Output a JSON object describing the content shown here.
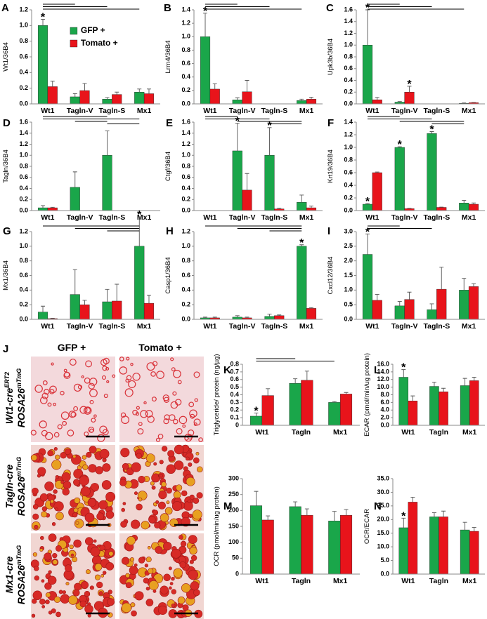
{
  "chart_data": [
    {
      "type": "bar",
      "panel": "A",
      "ylabel": "Wt1/36B4",
      "categories": [
        "Wt1",
        "Tagln-V",
        "Tagln-S",
        "Mx1"
      ],
      "series": [
        {
          "name": "GFP +",
          "color": "#1aa64a",
          "values": [
            1.0,
            0.09,
            0.06,
            0.15
          ],
          "errors": [
            0.08,
            0.04,
            0.02,
            0.04
          ]
        },
        {
          "name": "Tomato +",
          "color": "#e8141b",
          "values": [
            0.22,
            0.17,
            0.12,
            0.13
          ],
          "errors": [
            0.07,
            0.09,
            0.03,
            0.06
          ]
        }
      ],
      "legend": "upper center",
      "ylim": [
        0,
        1.2
      ],
      "yticks": [
        {
          "value": 0,
          "label": "0.0"
        },
        0.2,
        0.4,
        0.6,
        0.8,
        {
          "value": 1,
          "label": "1.0"
        },
        1.2
      ],
      "annotations": [
        {
          "text": "*",
          "category": 0,
          "series": 0
        }
      ]
    },
    {
      "type": "bar",
      "panel": "B",
      "ylabel": "Lrrn4/36B4",
      "categories": [
        "Wt1",
        "Tagln-V",
        "Tagln-S",
        "Mx1"
      ],
      "series": [
        {
          "color": "#1aa64a",
          "values": [
            1.0,
            0.06,
            0,
            0.05
          ],
          "errors": [
            0.35,
            0.03,
            0,
            0.02
          ]
        },
        {
          "color": "#e8141b",
          "values": [
            0.22,
            0.18,
            0,
            0.07
          ],
          "errors": [
            0.08,
            0.17,
            0,
            0.03
          ]
        }
      ],
      "ylim": [
        0,
        1.4
      ],
      "yticks": [
        {
          "value": 0,
          "label": "0.0"
        },
        0.2,
        0.4,
        0.6,
        0.8,
        {
          "value": 1,
          "label": "1.0"
        },
        1.2,
        1.4
      ],
      "annotations": [
        {
          "text": "*",
          "category": 0,
          "series": 0
        }
      ]
    },
    {
      "type": "bar",
      "panel": "C",
      "ylabel": "Upk3b/36B4",
      "categories": [
        "Wt1",
        "Tagln-V",
        "Tagln-S",
        "Mx1"
      ],
      "series": [
        {
          "color": "#1aa64a",
          "values": [
            1.0,
            0.03,
            0,
            0.01
          ],
          "errors": [
            0.6,
            0.01,
            0,
            0.005
          ]
        },
        {
          "color": "#e8141b",
          "values": [
            0.07,
            0.2,
            0,
            0.02
          ],
          "errors": [
            0.04,
            0.1,
            0,
            0.005
          ]
        }
      ],
      "ylim": [
        0,
        1.6
      ],
      "yticks": [
        {
          "value": 0,
          "label": "0.0"
        },
        0.2,
        0.4,
        0.6,
        0.8,
        {
          "value": 1,
          "label": "1.0"
        },
        1.2,
        1.4,
        1.6
      ],
      "annotations": [
        {
          "text": "*",
          "category": 0,
          "series": 0
        },
        {
          "text": "*",
          "category": 1,
          "series": 1
        }
      ]
    },
    {
      "type": "bar",
      "panel": "D",
      "ylabel": "Tagln/36B4",
      "categories": [
        "Wt1",
        "Tagln-V",
        "Tagln-S",
        "Mx1"
      ],
      "series": [
        {
          "color": "#1aa64a",
          "values": [
            0.05,
            0.42,
            1.0,
            0
          ],
          "errors": [
            0.04,
            0.28,
            0.44,
            0
          ]
        },
        {
          "color": "#e8141b",
          "values": [
            0.05,
            0,
            0,
            0
          ],
          "errors": [
            0.01,
            0,
            0,
            0
          ]
        }
      ],
      "ylim": [
        0,
        1.6
      ],
      "yticks": [
        {
          "value": 0,
          "label": "0.0"
        },
        0.2,
        0.4,
        0.6,
        0.8,
        {
          "value": 1,
          "label": "1.0"
        },
        1.2,
        1.4,
        1.6
      ]
    },
    {
      "type": "bar",
      "panel": "E",
      "ylabel": "Ctgf/36B4",
      "categories": [
        "Wt1",
        "Tagln-V",
        "Tagln-S",
        "Mx1"
      ],
      "series": [
        {
          "color": "#1aa64a",
          "values": [
            0,
            1.08,
            1.0,
            0.15
          ],
          "errors": [
            0,
            0.5,
            0.5,
            0.13
          ]
        },
        {
          "color": "#e8141b",
          "values": [
            0,
            0.37,
            0.03,
            0.05
          ],
          "errors": [
            0,
            0.3,
            0.01,
            0.03
          ]
        }
      ],
      "ylim": [
        0,
        1.6
      ],
      "yticks": [
        {
          "value": 0,
          "label": "0.0"
        },
        0.2,
        0.4,
        0.6,
        0.8,
        {
          "value": 1,
          "label": "1.0"
        },
        1.2,
        1.4,
        1.6
      ],
      "annotations": [
        {
          "text": "*",
          "category": 1,
          "series": 0
        },
        {
          "text": "*",
          "category": 2,
          "series": 0
        }
      ]
    },
    {
      "type": "bar",
      "panel": "F",
      "ylabel": "Krt19/36B4",
      "categories": [
        "Wt1",
        "Tagln-V",
        "Tagln-S",
        "Mx1"
      ],
      "series": [
        {
          "color": "#1aa64a",
          "values": [
            0.1,
            1.0,
            1.22,
            0.12
          ],
          "errors": [
            0.01,
            0.01,
            0.03,
            0.04
          ]
        },
        {
          "color": "#e8141b",
          "values": [
            0.6,
            0.03,
            0.05,
            0.1
          ],
          "errors": [
            0.01,
            0.005,
            0.005,
            0.02
          ]
        }
      ],
      "ylim": [
        0,
        1.4
      ],
      "yticks": [
        {
          "value": 0,
          "label": "0.0"
        },
        0.2,
        0.4,
        0.6,
        0.8,
        {
          "value": 1,
          "label": "1.0"
        },
        1.2,
        1.4
      ],
      "annotations": [
        {
          "text": "*",
          "category": 0,
          "series": 0
        },
        {
          "text": "*",
          "category": 1,
          "series": 0
        },
        {
          "text": "*",
          "category": 2,
          "series": 0
        }
      ]
    },
    {
      "type": "bar",
      "panel": "G",
      "ylabel": "Mx1/36B4",
      "categories": [
        "Wt1",
        "Tagln-V",
        "Tagln-S",
        "Mx1"
      ],
      "series": [
        {
          "color": "#1aa64a",
          "values": [
            0.1,
            0.34,
            0.24,
            1.0
          ],
          "errors": [
            0.08,
            0.34,
            0.17,
            0.4
          ]
        },
        {
          "color": "#e8141b",
          "values": [
            0.01,
            0.2,
            0.25,
            0.22
          ],
          "errors": [
            0.005,
            0.06,
            0.23,
            0.11
          ]
        }
      ],
      "ylim": [
        0,
        1.2
      ],
      "yticks": [
        {
          "value": 0,
          "label": "0.0"
        },
        0.2,
        0.4,
        0.6,
        0.8,
        {
          "value": 1,
          "label": "1.0"
        },
        1.2
      ],
      "annotations": [
        {
          "text": "*",
          "category": 3,
          "series": 0
        }
      ]
    },
    {
      "type": "bar",
      "panel": "H",
      "ylabel": "Casp1/36B4",
      "categories": [
        "Wt1",
        "Tagln-V",
        "Tagln-S",
        "Mx1"
      ],
      "series": [
        {
          "color": "#1aa64a",
          "values": [
            0.02,
            0.03,
            0.04,
            1.0
          ],
          "errors": [
            0.01,
            0.02,
            0.03,
            0.02
          ]
        },
        {
          "color": "#e8141b",
          "values": [
            0.02,
            0.02,
            0.05,
            0.15
          ],
          "errors": [
            0.01,
            0.01,
            0.01,
            0.01
          ]
        }
      ],
      "ylim": [
        0,
        1.2
      ],
      "yticks": [
        {
          "value": 0,
          "label": "0.0"
        },
        0.2,
        0.4,
        0.6,
        0.8,
        {
          "value": 1,
          "label": "1.0"
        },
        1.2
      ],
      "annotations": [
        {
          "text": "*",
          "category": 3,
          "series": 0
        }
      ]
    },
    {
      "type": "bar",
      "panel": "I",
      "ylabel": "Cxcl12/36B4",
      "categories": [
        "Wt1",
        "Tagln-V",
        "Tagln-S",
        "Mx1"
      ],
      "series": [
        {
          "color": "#1aa64a",
          "values": [
            2.22,
            0.46,
            0.33,
            1.0
          ],
          "errors": [
            0.7,
            0.15,
            0.2,
            0.4
          ]
        },
        {
          "color": "#e8141b",
          "values": [
            0.65,
            0.68,
            1.03,
            1.12
          ],
          "errors": [
            0.2,
            0.25,
            0.75,
            0.1
          ]
        }
      ],
      "ylim": [
        0,
        3
      ],
      "yticks": [
        {
          "value": 0,
          "label": "0.0"
        },
        0.5,
        {
          "value": 1,
          "label": "1.0"
        },
        1.5,
        {
          "value": 2,
          "label": "2.0"
        },
        2.5,
        {
          "value": 3,
          "label": "3.0"
        }
      ],
      "annotations": [
        {
          "text": "*",
          "category": 0,
          "series": 0
        }
      ]
    },
    {
      "type": "bar",
      "panel": "K",
      "ylabel": "Triglyceride/ protein (ng/µg)",
      "categories": [
        "Wt1",
        "Tagln",
        "Mx1"
      ],
      "series": [
        {
          "color": "#1aa64a",
          "values": [
            0.12,
            0.55,
            0.3
          ],
          "errors": [
            0.04,
            0.06,
            0.01
          ]
        },
        {
          "color": "#e8141b",
          "values": [
            0.39,
            0.59,
            0.41
          ],
          "errors": [
            0.09,
            0.12,
            0.02
          ]
        }
      ],
      "ylim": [
        0,
        0.8
      ],
      "yticks": [
        0,
        0.1,
        0.2,
        0.3,
        0.4,
        0.5,
        0.6,
        0.7,
        0.8
      ],
      "annotations": [
        {
          "text": "*",
          "category": 0,
          "series": 0
        }
      ]
    },
    {
      "type": "bar",
      "panel": "L",
      "ylabel": "ECAR (pmol/min/ug protein)",
      "categories": [
        "Wt1",
        "Tagln",
        "Mx1"
      ],
      "series": [
        {
          "color": "#1aa64a",
          "values": [
            12.6,
            10.2,
            10.4
          ],
          "errors": [
            2.0,
            1.1,
            1.9
          ]
        },
        {
          "color": "#e8141b",
          "values": [
            6.4,
            8.8,
            11.7
          ],
          "errors": [
            1.3,
            0.9,
            0.9
          ]
        }
      ],
      "ylim": [
        0,
        16
      ],
      "yticks": [
        {
          "value": 0,
          "label": "0.0"
        },
        {
          "value": 2,
          "label": "2.0"
        },
        {
          "value": 4,
          "label": "4.0"
        },
        {
          "value": 6,
          "label": "6.0"
        },
        {
          "value": 8,
          "label": "8.0"
        },
        {
          "value": 10,
          "label": "10.0"
        },
        {
          "value": 12,
          "label": "12.0"
        },
        {
          "value": 14,
          "label": "14.0"
        },
        {
          "value": 16,
          "label": "16.0"
        }
      ],
      "annotations": [
        {
          "text": "*",
          "category": 0,
          "series": 0
        }
      ]
    },
    {
      "type": "bar",
      "panel": "M",
      "ylabel": "OCR (pmol/min/ug protein)",
      "categories": [
        "Wt1",
        "Tagln",
        "Mx1"
      ],
      "series": [
        {
          "color": "#1aa64a",
          "values": [
            215,
            212,
            167
          ],
          "errors": [
            45,
            15,
            30
          ]
        },
        {
          "color": "#e8141b",
          "values": [
            170,
            185,
            185
          ],
          "errors": [
            13,
            20,
            18
          ]
        }
      ],
      "ylim": [
        0,
        300
      ],
      "yticks": [
        0,
        50,
        100,
        150,
        200,
        250,
        300
      ]
    },
    {
      "type": "bar",
      "panel": "N",
      "ylabel": "OCR/ECAR",
      "categories": [
        "Wt1",
        "Tagln",
        "Mx1"
      ],
      "series": [
        {
          "color": "#1aa64a",
          "values": [
            17,
            21,
            16.2
          ],
          "errors": [
            3.5,
            1.5,
            2.8
          ]
        },
        {
          "color": "#e8141b",
          "values": [
            26.4,
            21,
            15.7
          ],
          "errors": [
            1.8,
            2.1,
            1.4
          ]
        }
      ],
      "ylim": [
        0,
        35
      ],
      "yticks": [
        {
          "value": 0,
          "label": "0.0"
        },
        {
          "value": 5,
          "label": "5.0"
        },
        {
          "value": 10,
          "label": "10.0"
        },
        {
          "value": 15,
          "label": "15.0"
        },
        {
          "value": 20,
          "label": "20.0"
        },
        {
          "value": 25,
          "label": "25.0"
        },
        {
          "value": 30,
          "label": "30.0"
        },
        {
          "value": 35,
          "label": "35.0"
        }
      ],
      "annotations": [
        {
          "text": "*",
          "category": 0,
          "series": 0
        }
      ]
    }
  ],
  "image_panel": {
    "label": "J",
    "columns": [
      "GFP +",
      "Tomato +"
    ],
    "rows": [
      {
        "line1": "Wt1-cre",
        "line1_sup": "ERT2",
        "line2": "ROSA26",
        "line2_sup": "mTmG"
      },
      {
        "line1": "Tagln-cre",
        "line2": "ROSA26",
        "line2_sup": "mTmG"
      },
      {
        "line1": "Mx1-cre",
        "line2": "ROSA26",
        "line2_sup": "mTmG"
      }
    ]
  }
}
